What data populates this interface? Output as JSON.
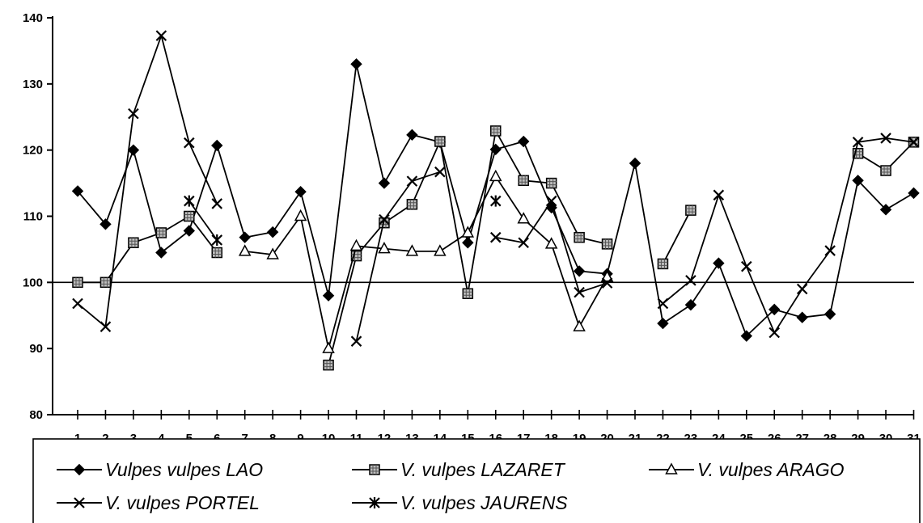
{
  "chart_data": {
    "type": "line",
    "title": "",
    "xlabel": "",
    "ylabel": "",
    "ylim": [
      80,
      140
    ],
    "yticks": [
      80,
      90,
      100,
      110,
      120,
      130,
      140
    ],
    "reference_line": 100,
    "x": [
      1,
      2,
      3,
      4,
      5,
      6,
      7,
      8,
      9,
      10,
      11,
      12,
      13,
      14,
      15,
      16,
      17,
      18,
      19,
      20,
      21,
      22,
      23,
      24,
      25,
      26,
      27,
      28,
      29,
      30,
      31
    ],
    "legend_position": "bottom",
    "series": [
      {
        "name": "Vulpes vulpes LAO",
        "marker": "diamond",
        "values": [
          113.8,
          108.8,
          120,
          104.5,
          107.8,
          120.7,
          106.8,
          107.6,
          113.7,
          98,
          133,
          115,
          122.3,
          121.2,
          106,
          120.1,
          121.3,
          111.3,
          101.7,
          101.3,
          118,
          93.8,
          96.6,
          102.9,
          91.9,
          95.9,
          94.7,
          95.2,
          115.4,
          111,
          113.5
        ]
      },
      {
        "name": "V. vulpes LAZARET",
        "marker": "square",
        "values": [
          100,
          100,
          106,
          107.5,
          110,
          104.5,
          null,
          null,
          null,
          87.5,
          104,
          109,
          111.8,
          121.3,
          98.3,
          122.9,
          115.4,
          115,
          106.8,
          105.8,
          null,
          102.8,
          110.9,
          null,
          null,
          null,
          null,
          null,
          119.5,
          116.9,
          121.2
        ]
      },
      {
        "name": "V. vulpes  ARAGO",
        "marker": "triangle",
        "values": [
          null,
          null,
          null,
          null,
          null,
          null,
          104.7,
          104.2,
          110,
          90,
          105.5,
          105.1,
          104.7,
          104.7,
          107.5,
          116,
          109.6,
          105.8,
          93.3,
          100.8,
          null,
          null,
          null,
          null,
          null,
          null,
          null,
          null,
          null,
          null,
          null
        ]
      },
      {
        "name": "V. vulpes PORTEL",
        "marker": "x",
        "values": [
          96.8,
          93.3,
          125.5,
          137.3,
          121.1,
          111.9,
          null,
          null,
          null,
          null,
          91.1,
          109.5,
          115.3,
          116.7,
          null,
          106.8,
          106,
          112.3,
          98.5,
          99.9,
          null,
          96.8,
          100.3,
          113.2,
          102.4,
          92.4,
          99,
          104.8,
          121.2,
          121.8,
          121.2
        ]
      },
      {
        "name": "V. vulpes  JAURENS",
        "marker": "asterisk",
        "values": [
          null,
          null,
          null,
          null,
          112.3,
          106.4,
          null,
          null,
          null,
          null,
          null,
          null,
          null,
          null,
          null,
          112.3,
          null,
          null,
          null,
          null,
          null,
          null,
          null,
          null,
          null,
          null,
          null,
          null,
          null,
          null,
          null
        ]
      }
    ]
  }
}
